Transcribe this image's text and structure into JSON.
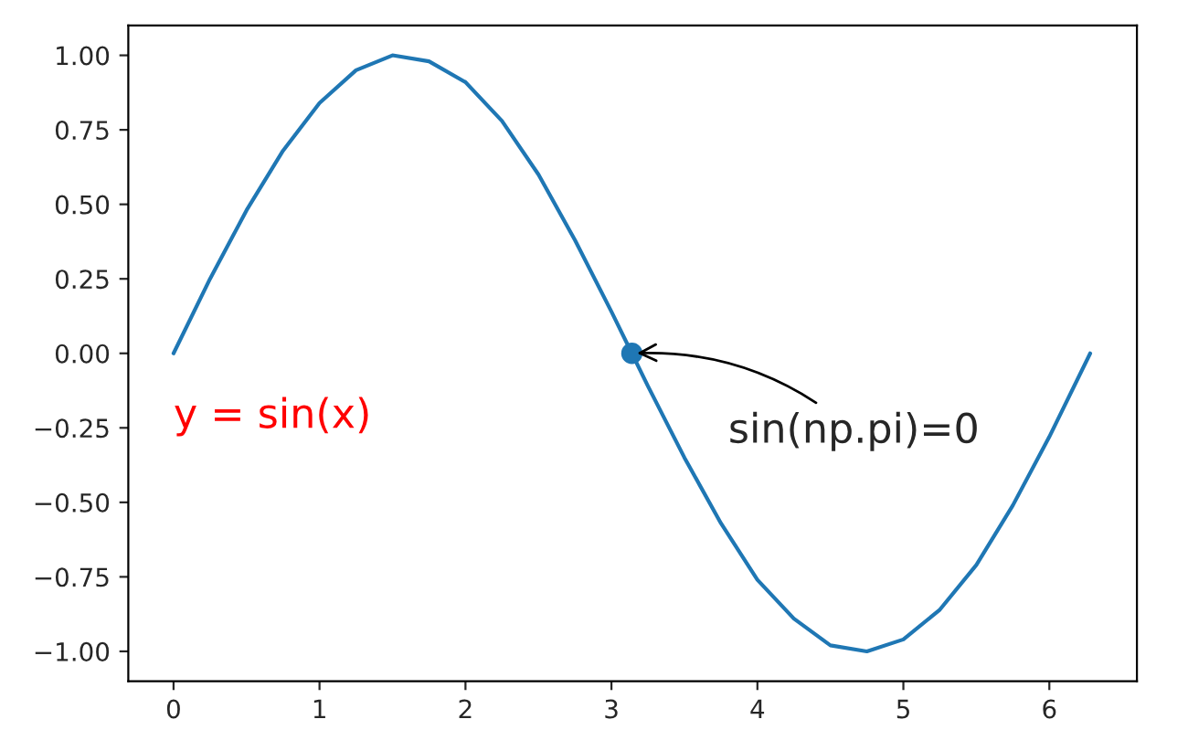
{
  "chart_data": {
    "type": "line",
    "series": [
      {
        "color": "#1f77b4",
        "x": [
          0,
          0.25,
          0.5,
          0.75,
          1,
          1.25,
          1.5,
          1.75,
          2,
          2.25,
          2.5,
          2.75,
          3,
          3.14,
          3.25,
          3.5,
          3.75,
          4,
          4.25,
          4.5,
          4.75,
          5,
          5.25,
          5.5,
          5.75,
          6,
          6.28
        ],
        "values": [
          0,
          0.25,
          0.48,
          0.68,
          0.84,
          0.95,
          1.0,
          0.98,
          0.91,
          0.78,
          0.6,
          0.38,
          0.14,
          0,
          -0.11,
          -0.35,
          -0.57,
          -0.76,
          -0.89,
          -0.98,
          -1.0,
          -0.96,
          -0.86,
          -0.71,
          -0.51,
          -0.28,
          0
        ]
      },
      {
        "type": "scatter",
        "color": "#1f77b4",
        "x": [
          3.14
        ],
        "values": [
          0
        ]
      }
    ],
    "annotations": [
      "y = sin(x)",
      {
        "text": "sin(np.pi)=0",
        "x": 3.14,
        "y": 0
      }
    ],
    "xlim": [
      -0.31,
      6.6
    ],
    "ylim": [
      -1.1,
      1.1
    ],
    "xticks": [
      0,
      1,
      2,
      3,
      4,
      5,
      6
    ],
    "yticks": [
      {
        "value": -1,
        "label": "−1.00"
      },
      {
        "value": -0.75,
        "label": "−0.75"
      },
      {
        "value": -0.5,
        "label": "−0.50"
      },
      {
        "value": -0.25,
        "label": "−0.25"
      },
      {
        "value": 0,
        "label": "0.00"
      },
      {
        "value": 0.25,
        "label": "0.25"
      },
      {
        "value": 0.5,
        "label": "0.50"
      },
      {
        "value": 0.75,
        "label": "0.75"
      },
      {
        "value": 1,
        "label": "1.00"
      }
    ],
    "grid": false,
    "legend": false
  }
}
